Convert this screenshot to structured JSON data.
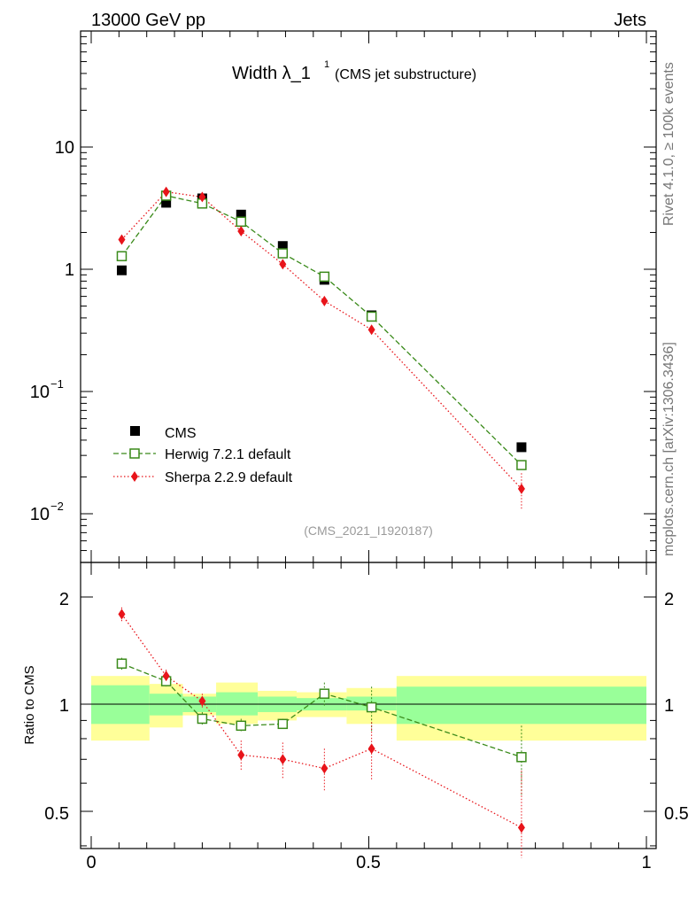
{
  "header": {
    "left": "13000 GeV pp",
    "right": "Jets"
  },
  "title": {
    "main": "Width λ_1",
    "superscript": "1",
    "sub": "(CMS jet substructure)"
  },
  "side_labels": {
    "rivet": "Rivet 4.1.0, ≥ 100k events",
    "mcplots": "mcplots.cern.ch [arXiv:1306.3436]"
  },
  "watermark": "(CMS_2021_I1920187)",
  "legend": {
    "cms": "CMS",
    "herwig": "Herwig 7.2.1 default",
    "sherpa": "Sherpa 2.2.9 default"
  },
  "colors": {
    "cms": "#000000",
    "herwig": "#3a8a1a",
    "sherpa": "#e8141a",
    "band_inner": "#99ff99",
    "band_outer": "#ffff99"
  },
  "chart_data": [
    {
      "type": "scatter",
      "title": "Width λ_1^1 (CMS jet substructure)",
      "xlabel": "",
      "ylabel": "",
      "yscale": "log",
      "xlim": [
        0,
        1
      ],
      "ylim": [
        0.004,
        80
      ],
      "ytick_labels": [
        "10",
        "1",
        "10^-1",
        "10^-2"
      ],
      "x": [
        0.055,
        0.135,
        0.2,
        0.27,
        0.345,
        0.42,
        0.505,
        0.775
      ],
      "series": [
        {
          "name": "CMS",
          "values": [
            0.98,
            3.5,
            3.8,
            2.8,
            1.55,
            0.82,
            0.42,
            0.035
          ]
        },
        {
          "name": "Herwig 7.2.1 default",
          "values": [
            1.28,
            4.0,
            3.45,
            2.45,
            1.35,
            0.87,
            0.41,
            0.025
          ]
        },
        {
          "name": "Sherpa 2.2.9 default",
          "values": [
            1.75,
            4.3,
            3.9,
            2.05,
            1.1,
            0.55,
            0.32,
            0.016
          ]
        }
      ]
    },
    {
      "type": "line",
      "title": "",
      "xlabel": "",
      "ylabel": "Ratio to CMS",
      "xlim": [
        0,
        1
      ],
      "ylim": [
        0.36,
        2.32
      ],
      "xtick_labels": [
        "0",
        "0.5",
        "1"
      ],
      "ytick_labels": [
        "2",
        "1",
        "0.5"
      ],
      "x": [
        0.055,
        0.135,
        0.2,
        0.27,
        0.345,
        0.42,
        0.505,
        0.775
      ],
      "series": [
        {
          "name": "Herwig 7.2.1 default",
          "values": [
            1.3,
            1.16,
            0.91,
            0.87,
            0.88,
            1.07,
            0.98,
            0.71
          ]
        },
        {
          "name": "Sherpa 2.2.9 default",
          "values": [
            1.79,
            1.2,
            1.02,
            0.72,
            0.7,
            0.66,
            0.75,
            0.45
          ]
        }
      ],
      "uncertainty_bins": [
        {
          "x0": 0.0,
          "x1": 0.105,
          "inner": [
            0.88,
            1.13
          ],
          "outer": [
            0.79,
            1.2
          ]
        },
        {
          "x0": 0.105,
          "x1": 0.165,
          "inner": [
            0.93,
            1.07
          ],
          "outer": [
            0.86,
            1.14
          ]
        },
        {
          "x0": 0.165,
          "x1": 0.225,
          "inner": [
            0.95,
            1.05
          ],
          "outer": [
            0.93,
            1.07
          ]
        },
        {
          "x0": 0.225,
          "x1": 0.3,
          "inner": [
            0.93,
            1.08
          ],
          "outer": [
            0.88,
            1.15
          ]
        },
        {
          "x0": 0.3,
          "x1": 0.37,
          "inner": [
            0.95,
            1.05
          ],
          "outer": [
            0.9,
            1.09
          ]
        },
        {
          "x0": 0.37,
          "x1": 0.46,
          "inner": [
            0.96,
            1.04
          ],
          "outer": [
            0.92,
            1.08
          ]
        },
        {
          "x0": 0.46,
          "x1": 0.55,
          "inner": [
            0.96,
            1.05
          ],
          "outer": [
            0.88,
            1.11
          ]
        },
        {
          "x0": 0.55,
          "x1": 1.0,
          "inner": [
            0.88,
            1.12
          ],
          "outer": [
            0.79,
            1.2
          ]
        }
      ]
    }
  ]
}
